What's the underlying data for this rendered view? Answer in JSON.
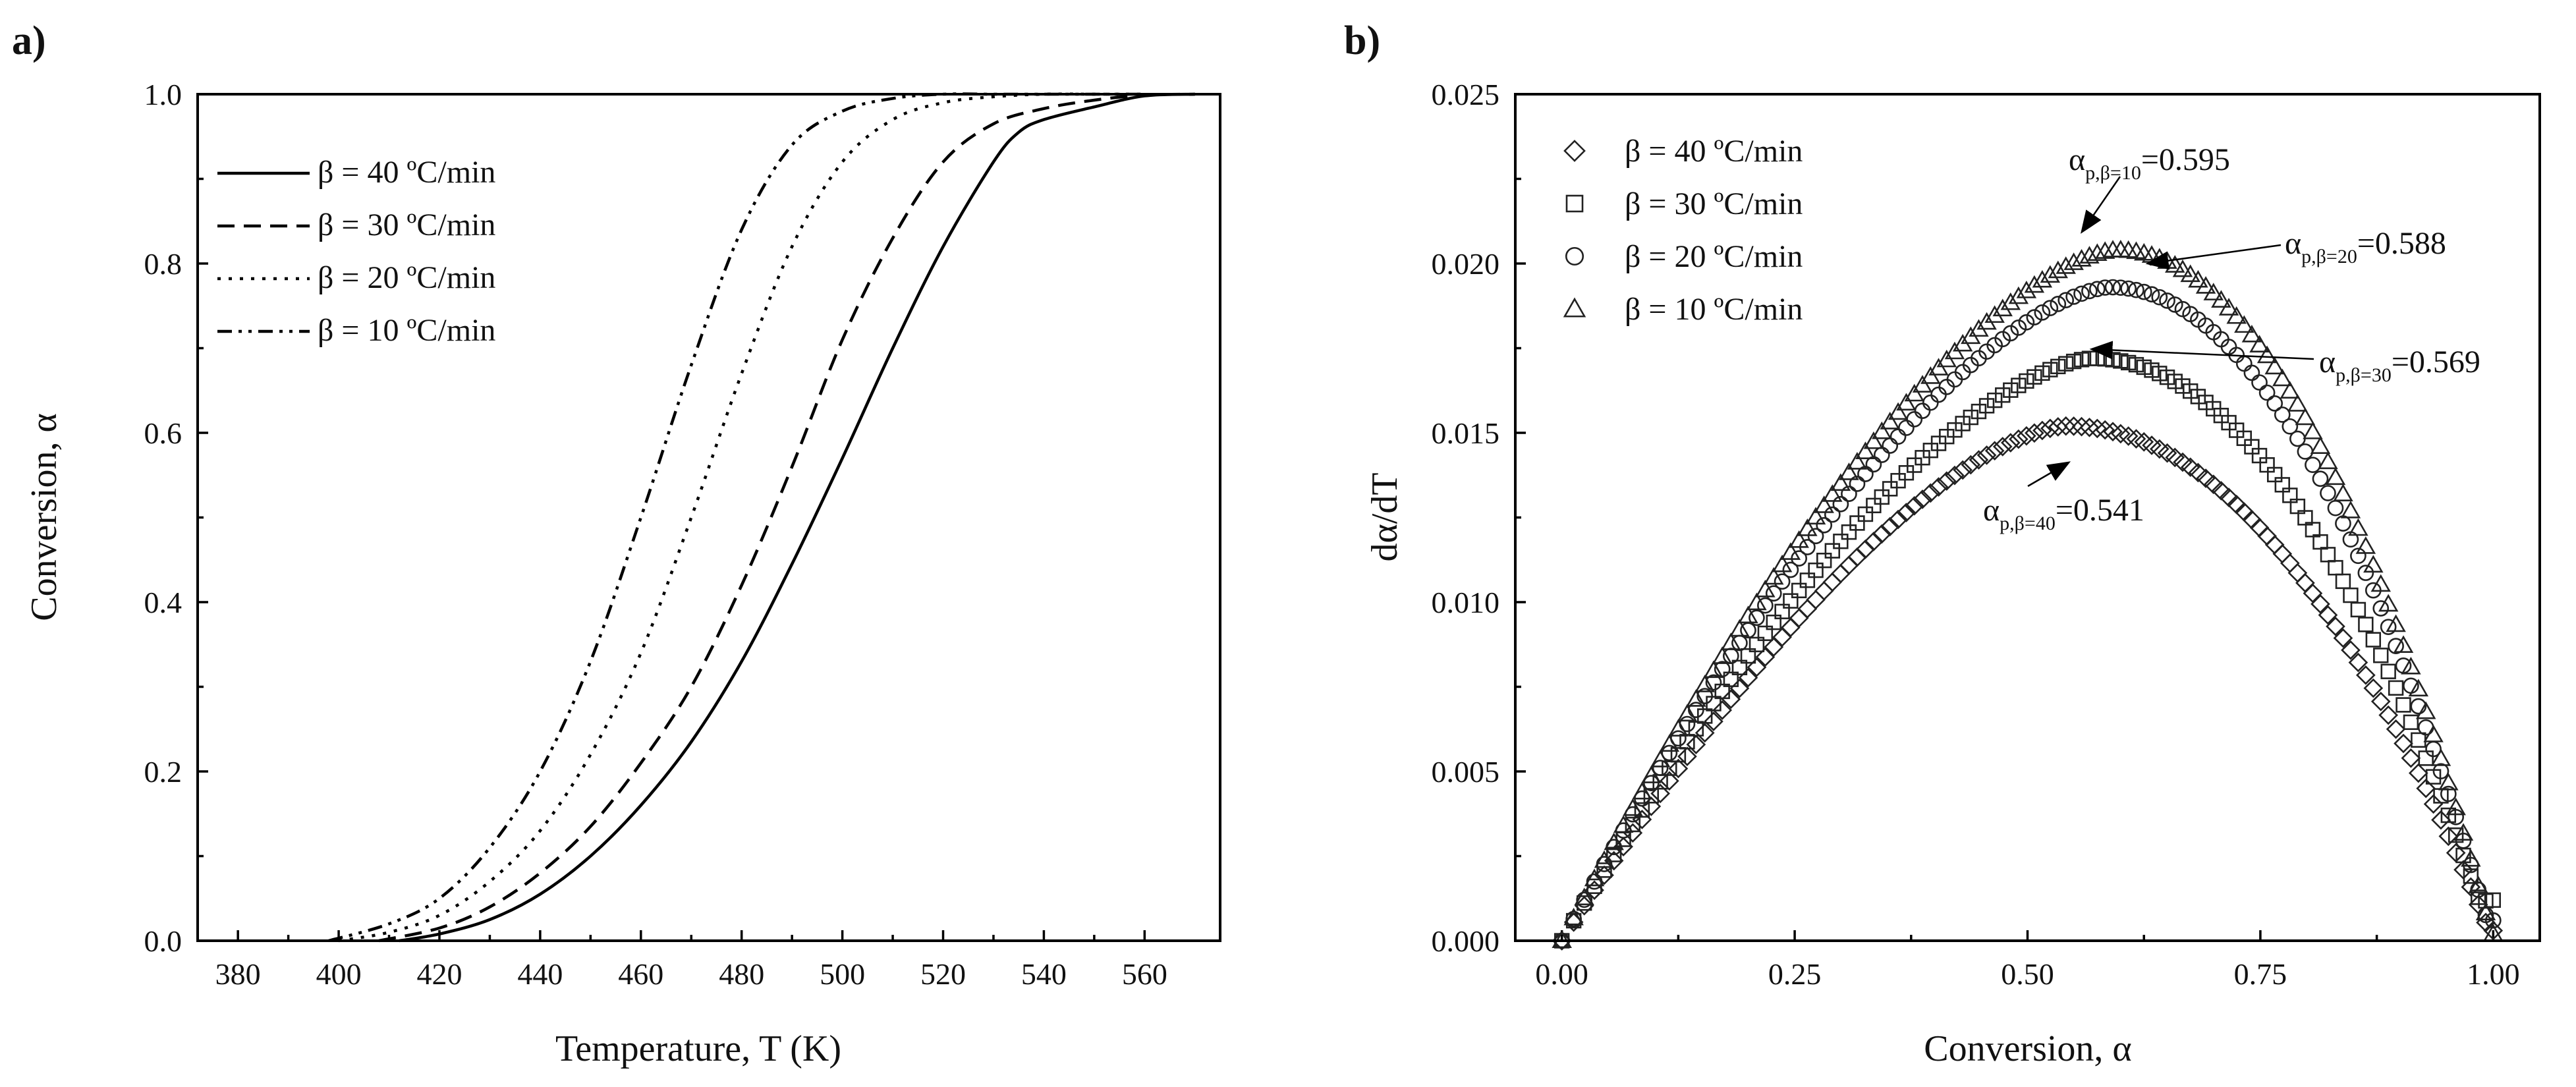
{
  "chart_data": [
    {
      "panel": "a)",
      "type": "line",
      "xlabel": "Temperature, T (K)",
      "ylabel": "Conversion, α",
      "xlim": [
        372,
        575
      ],
      "ylim": [
        0,
        1
      ],
      "xticks": [
        380,
        400,
        420,
        440,
        460,
        480,
        500,
        520,
        540,
        560
      ],
      "xtick_labels": [
        "380",
        "400",
        "420",
        "440",
        "460",
        "480",
        "500",
        "520",
        "540",
        "560"
      ],
      "yticks": [
        0,
        0.2,
        0.4,
        0.6,
        0.8,
        1.0
      ],
      "ytick_labels": [
        "0.0",
        "0.2",
        "0.4",
        "0.6",
        "0.8",
        "1.0"
      ],
      "legend_position": "top-left",
      "series": [
        {
          "name": "β = 40 ºC/min",
          "style": "solid",
          "x": [
            412,
            420,
            430,
            440,
            450,
            460,
            470,
            480,
            490,
            500,
            510,
            520,
            530,
            535,
            540,
            550,
            560,
            570
          ],
          "y": [
            0,
            0.008,
            0.025,
            0.055,
            0.1,
            0.16,
            0.235,
            0.33,
            0.445,
            0.57,
            0.7,
            0.82,
            0.92,
            0.955,
            0.97,
            0.985,
            0.998,
            1.0
          ]
        },
        {
          "name": "β = 30 ºC/min",
          "style": "dashed",
          "x": [
            408,
            420,
            430,
            440,
            450,
            460,
            470,
            480,
            490,
            500,
            510,
            520,
            530,
            540,
            550,
            560,
            570
          ],
          "y": [
            0,
            0.015,
            0.04,
            0.08,
            0.135,
            0.21,
            0.3,
            0.42,
            0.56,
            0.71,
            0.83,
            0.92,
            0.965,
            0.983,
            0.993,
            0.999,
            1.0
          ]
        },
        {
          "name": "β = 20 ºC/min",
          "style": "dotted",
          "x": [
            400,
            410,
            420,
            430,
            440,
            450,
            460,
            470,
            480,
            490,
            500,
            510,
            520,
            530,
            540,
            550,
            560
          ],
          "y": [
            0,
            0.01,
            0.03,
            0.07,
            0.13,
            0.22,
            0.34,
            0.5,
            0.67,
            0.82,
            0.92,
            0.97,
            0.99,
            0.997,
            1.0,
            1.0,
            1.0
          ]
        },
        {
          "name": "β = 10 ºC/min",
          "style": "dashdotdot",
          "x": [
            398,
            410,
            420,
            430,
            440,
            450,
            460,
            470,
            480,
            490,
            500,
            510,
            520,
            530,
            540,
            560
          ],
          "y": [
            0,
            0.02,
            0.05,
            0.11,
            0.2,
            0.33,
            0.5,
            0.68,
            0.84,
            0.94,
            0.98,
            0.995,
            1.0,
            1.0,
            1.0,
            1.0
          ]
        }
      ]
    },
    {
      "panel": "b)",
      "type": "scatter",
      "xlabel": "Conversion, α",
      "ylabel": "dα/dT",
      "xlim": [
        -0.05,
        1.05
      ],
      "ylim": [
        0,
        0.025
      ],
      "xticks": [
        0,
        0.25,
        0.5,
        0.75,
        1.0
      ],
      "xtick_labels": [
        "0.00",
        "0.25",
        "0.50",
        "0.75",
        "1.00"
      ],
      "yticks": [
        0,
        0.005,
        0.01,
        0.015,
        0.02,
        0.025
      ],
      "ytick_labels": [
        "0.000",
        "0.005",
        "0.010",
        "0.015",
        "0.020",
        "0.025"
      ],
      "legend_position": "top-left",
      "series": [
        {
          "name": "β = 40 ºC/min",
          "marker": "diamond",
          "peak_alpha": 0.541,
          "peak_value": 0.0152,
          "end_value": 0.0003
        },
        {
          "name": "β = 30 ºC/min",
          "marker": "square",
          "peak_alpha": 0.569,
          "peak_value": 0.0172,
          "end_value": 0.0012
        },
        {
          "name": "β = 20 ºC/min",
          "marker": "circle",
          "peak_alpha": 0.588,
          "peak_value": 0.0193,
          "end_value": 0.0006
        },
        {
          "name": "β = 10 ºC/min",
          "marker": "triangle",
          "peak_alpha": 0.595,
          "peak_value": 0.0204,
          "end_value": 0.0002
        }
      ],
      "annotations": [
        {
          "prefix": "α",
          "sub": "p,β=10",
          "suffix": "=0.595"
        },
        {
          "prefix": "α",
          "sub": "p,β=20",
          "suffix": "=0.588"
        },
        {
          "prefix": "α",
          "sub": "p,β=30",
          "suffix": "=0.569"
        },
        {
          "prefix": "α",
          "sub": "p,β=40",
          "suffix": "=0.541"
        }
      ]
    }
  ]
}
